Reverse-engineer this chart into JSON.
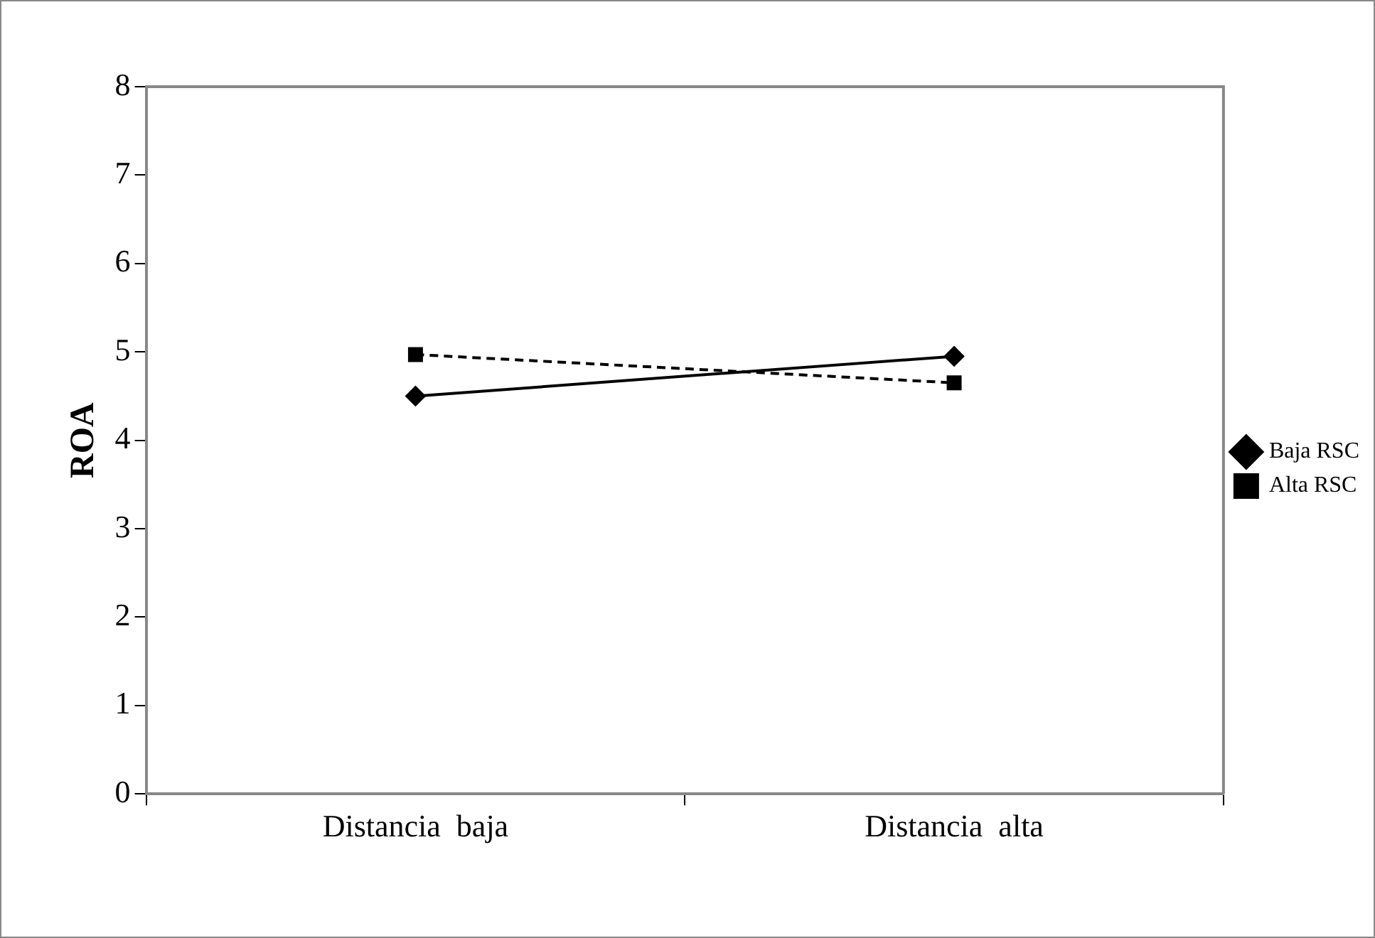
{
  "chart_data": {
    "type": "line",
    "ylabel": "ROA",
    "categories": [
      "Distancia  baja",
      "Distancia  alta"
    ],
    "series": [
      {
        "name": "Baja RSC",
        "color": "#000000",
        "values": [
          4.5,
          4.95
        ],
        "marker": "diamond",
        "line_style": "solid"
      },
      {
        "name": "Alta RSC",
        "color": "#000000",
        "values": [
          4.97,
          4.65
        ],
        "marker": "square",
        "line_style": "dashed"
      }
    ],
    "ylim": [
      0,
      8
    ],
    "yticks": [
      0,
      1,
      2,
      3,
      4,
      5,
      6,
      7,
      8
    ],
    "grid": false,
    "legend": "right"
  }
}
